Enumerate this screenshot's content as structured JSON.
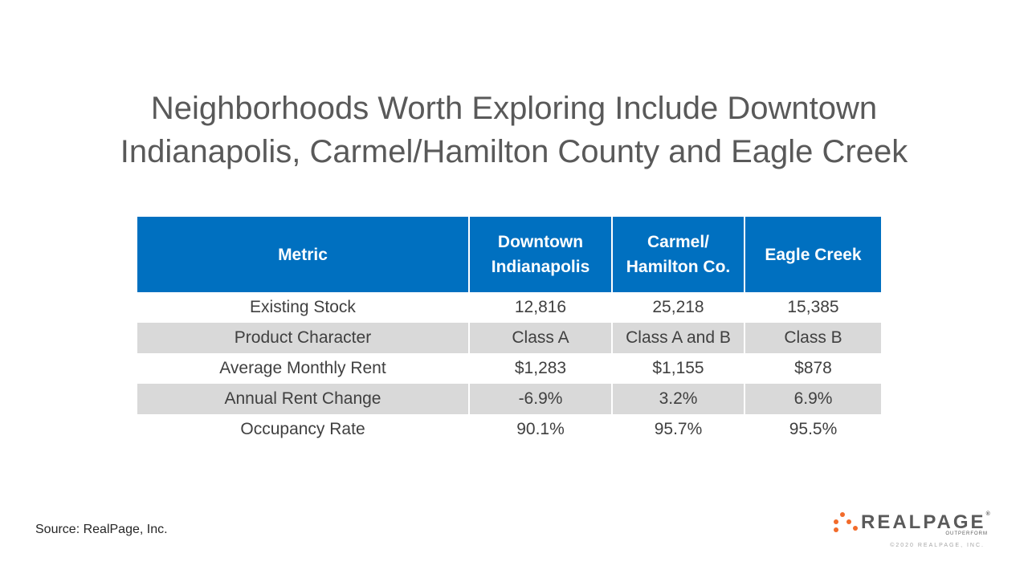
{
  "title": {
    "line1": "Neighborhoods Worth Exploring Include Downtown",
    "line2": "Indianapolis, Carmel/Hamilton County and Eagle Creek"
  },
  "table": {
    "headers": {
      "metric": "Metric",
      "col1": "Downtown Indianapolis",
      "col2": "Carmel/ Hamilton Co.",
      "col3": "Eagle Creek"
    },
    "rows": [
      {
        "metric": "Existing Stock",
        "v1": "12,816",
        "v2": "25,218",
        "v3": "15,385"
      },
      {
        "metric": "Product Character",
        "v1": "Class A",
        "v2": "Class A and B",
        "v3": "Class B"
      },
      {
        "metric": "Average Monthly Rent",
        "v1": "$1,283",
        "v2": "$1,155",
        "v3": "$878"
      },
      {
        "metric": "Annual Rent Change",
        "v1": "-6.9%",
        "v2": "3.2%",
        "v3": "6.9%"
      },
      {
        "metric": "Occupancy Rate",
        "v1": "90.1%",
        "v2": "95.7%",
        "v3": "95.5%"
      }
    ]
  },
  "footer": {
    "source": "Source: RealPage, Inc.",
    "logo_text": "REALPAGE",
    "logo_mark": "®",
    "logo_tagline": "OUTPERFORM",
    "copyright": "©2020 REALPAGE, INC.",
    "logo_color": "#f26b2a"
  }
}
